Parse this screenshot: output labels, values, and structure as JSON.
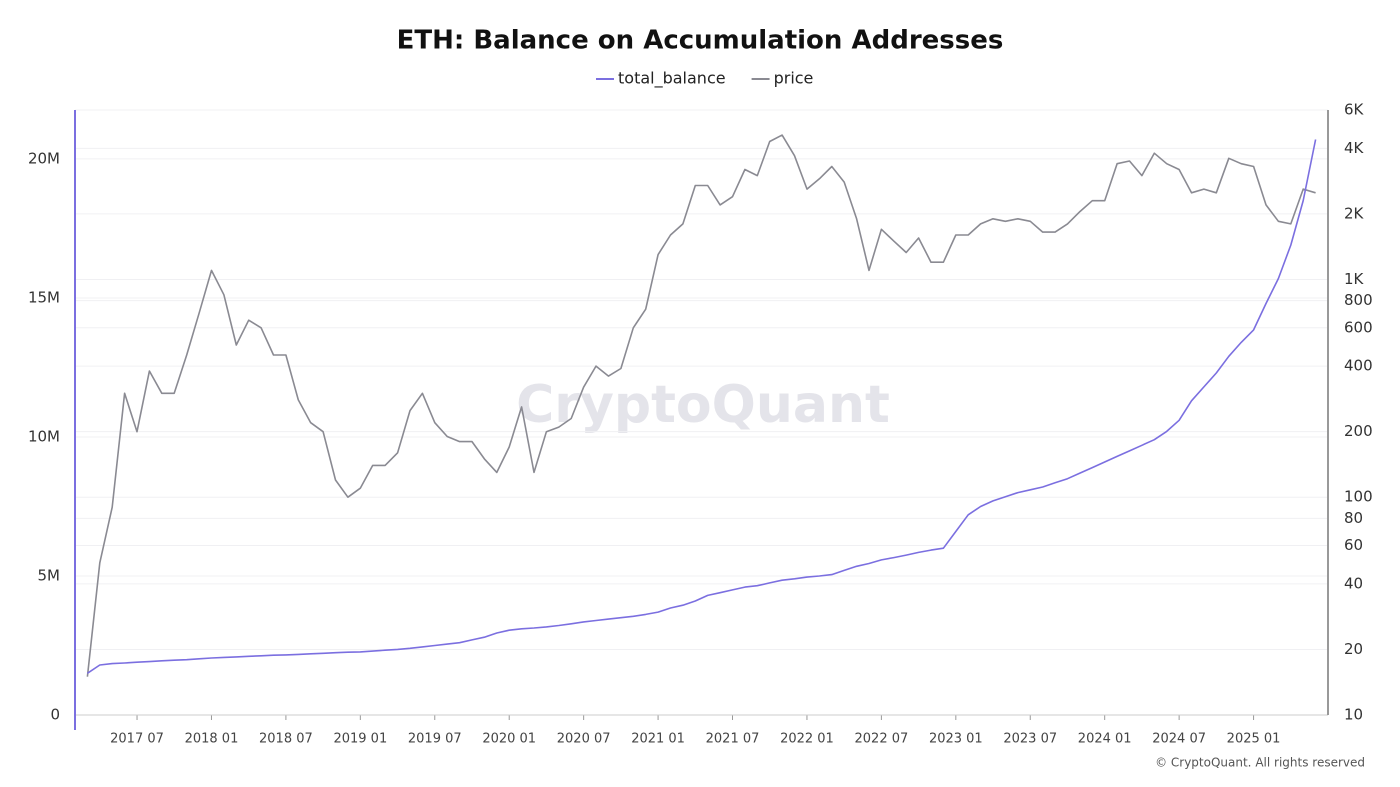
{
  "chart_data": {
    "type": "line",
    "title": "ETH: Balance on Accumulation Addresses",
    "watermark": "CryptoQuant",
    "credit": "© CryptoQuant. All rights reserved",
    "x": [
      "2017-03",
      "2017-04",
      "2017-05",
      "2017-06",
      "2017-07",
      "2017-08",
      "2017-09",
      "2017-10",
      "2017-11",
      "2017-12",
      "2018-01",
      "2018-02",
      "2018-03",
      "2018-04",
      "2018-05",
      "2018-06",
      "2018-07",
      "2018-08",
      "2018-09",
      "2018-10",
      "2018-11",
      "2018-12",
      "2019-01",
      "2019-02",
      "2019-03",
      "2019-04",
      "2019-05",
      "2019-06",
      "2019-07",
      "2019-08",
      "2019-09",
      "2019-10",
      "2019-11",
      "2019-12",
      "2020-01",
      "2020-02",
      "2020-03",
      "2020-04",
      "2020-05",
      "2020-06",
      "2020-07",
      "2020-08",
      "2020-09",
      "2020-10",
      "2020-11",
      "2020-12",
      "2021-01",
      "2021-02",
      "2021-03",
      "2021-04",
      "2021-05",
      "2021-06",
      "2021-07",
      "2021-08",
      "2021-09",
      "2021-10",
      "2021-11",
      "2021-12",
      "2022-01",
      "2022-02",
      "2022-03",
      "2022-04",
      "2022-05",
      "2022-06",
      "2022-07",
      "2022-08",
      "2022-09",
      "2022-10",
      "2022-11",
      "2022-12",
      "2023-01",
      "2023-02",
      "2023-03",
      "2023-04",
      "2023-05",
      "2023-06",
      "2023-07",
      "2023-08",
      "2023-09",
      "2023-10",
      "2023-11",
      "2023-12",
      "2024-01",
      "2024-02",
      "2024-03",
      "2024-04",
      "2024-05",
      "2024-06",
      "2024-07",
      "2024-08",
      "2024-09",
      "2024-10",
      "2024-11",
      "2024-12",
      "2025-01",
      "2025-02",
      "2025-03",
      "2025-04",
      "2025-05",
      "2025-06"
    ],
    "series": [
      {
        "name": "total_balance",
        "color": "#7b6fe0",
        "values": [
          1500000,
          1800000,
          1850000,
          1870000,
          1900000,
          1920000,
          1950000,
          1970000,
          1990000,
          2020000,
          2050000,
          2070000,
          2090000,
          2110000,
          2130000,
          2150000,
          2160000,
          2180000,
          2200000,
          2220000,
          2240000,
          2260000,
          2270000,
          2300000,
          2330000,
          2360000,
          2400000,
          2450000,
          2500000,
          2550000,
          2600000,
          2700000,
          2800000,
          2950000,
          3050000,
          3100000,
          3130000,
          3170000,
          3220000,
          3280000,
          3350000,
          3400000,
          3450000,
          3500000,
          3550000,
          3620000,
          3700000,
          3850000,
          3950000,
          4100000,
          4300000,
          4400000,
          4500000,
          4600000,
          4650000,
          4750000,
          4850000,
          4900000,
          4960000,
          5000000,
          5050000,
          5200000,
          5350000,
          5450000,
          5580000,
          5660000,
          5750000,
          5850000,
          5930000,
          6000000,
          6600000,
          7200000,
          7500000,
          7700000,
          7850000,
          8000000,
          8100000,
          8200000,
          8350000,
          8500000,
          8700000,
          8900000,
          9100000,
          9300000,
          9500000,
          9700000,
          9900000,
          10200000,
          10600000,
          11300000,
          11800000,
          12300000,
          12900000,
          13400000,
          13850000,
          14800000,
          15700000,
          16900000,
          18500000,
          20700000
        ]
      },
      {
        "name": "price",
        "color": "#8a8a92",
        "axis": "y2",
        "values": [
          15,
          50,
          90,
          300,
          200,
          380,
          300,
          300,
          450,
          700,
          1100,
          850,
          500,
          650,
          600,
          450,
          450,
          280,
          220,
          200,
          120,
          100,
          110,
          140,
          140,
          160,
          250,
          300,
          220,
          190,
          180,
          180,
          150,
          130,
          170,
          260,
          130,
          200,
          210,
          230,
          320,
          400,
          360,
          390,
          600,
          730,
          1300,
          1600,
          1800,
          2700,
          2700,
          2200,
          2400,
          3200,
          3000,
          4300,
          4600,
          3700,
          2600,
          2900,
          3300,
          2800,
          1900,
          1100,
          1700,
          1500,
          1330,
          1550,
          1200,
          1200,
          1600,
          1600,
          1800,
          1900,
          1850,
          1900,
          1850,
          1650,
          1650,
          1800,
          2050,
          2300,
          2300,
          3400,
          3500,
          3000,
          3800,
          3400,
          3200,
          2500,
          2600,
          2500,
          3600,
          3400,
          3300,
          2200,
          1850,
          1800,
          2600,
          2500
        ]
      }
    ],
    "xlim": [
      "2017-02",
      "2025-07"
    ],
    "xticks": [
      {
        "value": "2017-07",
        "label": "2017 07"
      },
      {
        "value": "2018-01",
        "label": "2018 01"
      },
      {
        "value": "2018-07",
        "label": "2018 07"
      },
      {
        "value": "2019-01",
        "label": "2019 01"
      },
      {
        "value": "2019-07",
        "label": "2019 07"
      },
      {
        "value": "2020-01",
        "label": "2020 01"
      },
      {
        "value": "2020-07",
        "label": "2020 07"
      },
      {
        "value": "2021-01",
        "label": "2021 01"
      },
      {
        "value": "2021-07",
        "label": "2021 07"
      },
      {
        "value": "2022-01",
        "label": "2022 01"
      },
      {
        "value": "2022-07",
        "label": "2022 07"
      },
      {
        "value": "2023-01",
        "label": "2023 01"
      },
      {
        "value": "2023-07",
        "label": "2023 07"
      },
      {
        "value": "2024-01",
        "label": "2024 01"
      },
      {
        "value": "2024-07",
        "label": "2024 07"
      },
      {
        "value": "2025-01",
        "label": "2025 01"
      }
    ],
    "ylim": [
      0,
      21760000
    ],
    "yticks": [
      0,
      {
        "value": 5000000,
        "label": "5M"
      },
      {
        "value": 10000000,
        "label": "10M"
      },
      {
        "value": 15000000,
        "label": "15M"
      },
      {
        "value": 20000000,
        "label": "20M"
      }
    ],
    "y2lim": [
      10,
      6000
    ],
    "y2_log": true,
    "y2ticks": [
      10,
      20,
      40,
      60,
      80,
      100,
      200,
      400,
      600,
      800,
      {
        "value": 1000,
        "label": "1K"
      },
      {
        "value": 2000,
        "label": "2K"
      },
      {
        "value": 4000,
        "label": "4K"
      },
      {
        "value": 6000,
        "label": "6K"
      }
    ],
    "grid": true,
    "legend": "top"
  }
}
